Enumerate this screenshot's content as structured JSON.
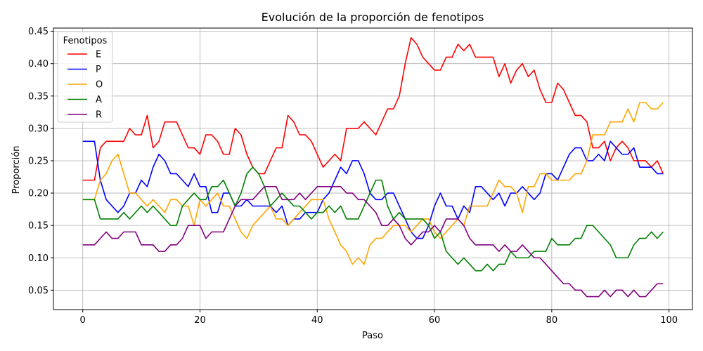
{
  "chart_data": {
    "type": "line",
    "title": "Evolución de la proporción de fenotipos",
    "xlabel": "Paso",
    "ylabel": "Proporción",
    "xlim": [
      -5,
      104
    ],
    "ylim": [
      0.02,
      0.455
    ],
    "xticks": [
      0,
      20,
      40,
      60,
      80,
      100
    ],
    "xtick_labels": [
      "0",
      "20",
      "40",
      "60",
      "80",
      "100"
    ],
    "yticks": [
      0.05,
      0.1,
      0.15,
      0.2,
      0.25,
      0.3,
      0.35,
      0.4,
      0.45
    ],
    "ytick_labels": [
      "0.05",
      "0.10",
      "0.15",
      "0.20",
      "0.25",
      "0.30",
      "0.35",
      "0.40",
      "0.45"
    ],
    "grid": true,
    "legend": {
      "title": "Fenotipos",
      "placement": "top-left"
    },
    "x": [
      0,
      1,
      2,
      3,
      4,
      5,
      6,
      7,
      8,
      9,
      10,
      11,
      12,
      13,
      14,
      15,
      16,
      17,
      18,
      19,
      20,
      21,
      22,
      23,
      24,
      25,
      26,
      27,
      28,
      29,
      30,
      31,
      32,
      33,
      34,
      35,
      36,
      37,
      38,
      39,
      40,
      41,
      42,
      43,
      44,
      45,
      46,
      47,
      48,
      49,
      50,
      51,
      52,
      53,
      54,
      55,
      56,
      57,
      58,
      59,
      60,
      61,
      62,
      63,
      64,
      65,
      66,
      67,
      68,
      69,
      70,
      71,
      72,
      73,
      74,
      75,
      76,
      77,
      78,
      79,
      80,
      81,
      82,
      83,
      84,
      85,
      86,
      87,
      88,
      89,
      90,
      91,
      92,
      93,
      94,
      95,
      96,
      97,
      98,
      99
    ],
    "series": [
      {
        "name": "E",
        "color": "#ff0000",
        "values": [
          0.22,
          0.22,
          0.22,
          0.27,
          0.28,
          0.28,
          0.28,
          0.28,
          0.3,
          0.29,
          0.29,
          0.32,
          0.27,
          0.28,
          0.31,
          0.31,
          0.31,
          0.29,
          0.27,
          0.27,
          0.26,
          0.29,
          0.29,
          0.28,
          0.26,
          0.26,
          0.3,
          0.29,
          0.26,
          0.24,
          0.23,
          0.23,
          0.25,
          0.27,
          0.27,
          0.32,
          0.31,
          0.29,
          0.29,
          0.28,
          0.26,
          0.24,
          0.25,
          0.26,
          0.25,
          0.3,
          0.3,
          0.3,
          0.31,
          0.3,
          0.29,
          0.31,
          0.33,
          0.33,
          0.35,
          0.4,
          0.44,
          0.43,
          0.41,
          0.4,
          0.39,
          0.39,
          0.41,
          0.41,
          0.43,
          0.42,
          0.43,
          0.41,
          0.41,
          0.41,
          0.41,
          0.38,
          0.4,
          0.37,
          0.39,
          0.4,
          0.38,
          0.39,
          0.36,
          0.34,
          0.34,
          0.37,
          0.36,
          0.34,
          0.32,
          0.32,
          0.31,
          0.27,
          0.27,
          0.28,
          0.25,
          0.27,
          0.28,
          0.27,
          0.25,
          0.25,
          0.25,
          0.24,
          0.25,
          0.23
        ]
      },
      {
        "name": "P",
        "color": "#0000ff",
        "values": [
          0.28,
          0.28,
          0.28,
          0.22,
          0.19,
          0.18,
          0.17,
          0.18,
          0.2,
          0.2,
          0.22,
          0.21,
          0.24,
          0.26,
          0.25,
          0.23,
          0.23,
          0.22,
          0.21,
          0.23,
          0.21,
          0.21,
          0.17,
          0.17,
          0.2,
          0.2,
          0.18,
          0.18,
          0.19,
          0.18,
          0.18,
          0.18,
          0.18,
          0.17,
          0.18,
          0.15,
          0.16,
          0.16,
          0.17,
          0.17,
          0.17,
          0.19,
          0.2,
          0.22,
          0.24,
          0.23,
          0.25,
          0.25,
          0.23,
          0.2,
          0.19,
          0.19,
          0.2,
          0.2,
          0.18,
          0.16,
          0.14,
          0.13,
          0.13,
          0.15,
          0.18,
          0.2,
          0.18,
          0.18,
          0.16,
          0.18,
          0.17,
          0.21,
          0.21,
          0.2,
          0.19,
          0.2,
          0.18,
          0.2,
          0.2,
          0.21,
          0.2,
          0.19,
          0.2,
          0.23,
          0.23,
          0.22,
          0.24,
          0.26,
          0.27,
          0.27,
          0.25,
          0.25,
          0.26,
          0.25,
          0.28,
          0.27,
          0.26,
          0.26,
          0.27,
          0.24,
          0.24,
          0.24,
          0.23,
          0.23
        ]
      },
      {
        "name": "O",
        "color": "#ffa500",
        "values": [
          0.19,
          0.19,
          0.19,
          0.22,
          0.23,
          0.25,
          0.26,
          0.23,
          0.2,
          0.2,
          0.19,
          0.18,
          0.19,
          0.18,
          0.17,
          0.19,
          0.19,
          0.18,
          0.18,
          0.15,
          0.19,
          0.18,
          0.19,
          0.2,
          0.18,
          0.18,
          0.16,
          0.14,
          0.13,
          0.15,
          0.16,
          0.17,
          0.18,
          0.16,
          0.16,
          0.15,
          0.16,
          0.17,
          0.18,
          0.19,
          0.19,
          0.19,
          0.16,
          0.14,
          0.12,
          0.11,
          0.09,
          0.1,
          0.09,
          0.12,
          0.13,
          0.13,
          0.14,
          0.15,
          0.15,
          0.15,
          0.14,
          0.15,
          0.16,
          0.16,
          0.14,
          0.13,
          0.14,
          0.15,
          0.16,
          0.15,
          0.18,
          0.18,
          0.18,
          0.18,
          0.2,
          0.22,
          0.21,
          0.21,
          0.2,
          0.17,
          0.21,
          0.21,
          0.23,
          0.23,
          0.22,
          0.22,
          0.22,
          0.22,
          0.23,
          0.23,
          0.25,
          0.29,
          0.29,
          0.29,
          0.31,
          0.31,
          0.31,
          0.33,
          0.31,
          0.34,
          0.34,
          0.33,
          0.33,
          0.34
        ]
      },
      {
        "name": "A",
        "color": "#008000",
        "values": [
          0.19,
          0.19,
          0.19,
          0.16,
          0.16,
          0.16,
          0.16,
          0.17,
          0.16,
          0.17,
          0.18,
          0.17,
          0.18,
          0.17,
          0.16,
          0.15,
          0.15,
          0.18,
          0.19,
          0.2,
          0.19,
          0.19,
          0.21,
          0.21,
          0.22,
          0.2,
          0.18,
          0.2,
          0.23,
          0.24,
          0.23,
          0.21,
          0.18,
          0.19,
          0.2,
          0.19,
          0.18,
          0.18,
          0.17,
          0.16,
          0.17,
          0.17,
          0.18,
          0.17,
          0.18,
          0.16,
          0.16,
          0.16,
          0.18,
          0.2,
          0.22,
          0.22,
          0.18,
          0.16,
          0.17,
          0.16,
          0.16,
          0.16,
          0.16,
          0.15,
          0.13,
          0.14,
          0.11,
          0.1,
          0.09,
          0.1,
          0.09,
          0.08,
          0.08,
          0.09,
          0.08,
          0.09,
          0.09,
          0.11,
          0.1,
          0.1,
          0.1,
          0.11,
          0.11,
          0.11,
          0.13,
          0.12,
          0.12,
          0.12,
          0.13,
          0.13,
          0.15,
          0.15,
          0.14,
          0.13,
          0.12,
          0.1,
          0.1,
          0.1,
          0.12,
          0.13,
          0.13,
          0.14,
          0.13,
          0.14
        ]
      },
      {
        "name": "R",
        "color": "#800080",
        "values": [
          0.12,
          0.12,
          0.12,
          0.13,
          0.14,
          0.13,
          0.13,
          0.14,
          0.14,
          0.14,
          0.12,
          0.12,
          0.12,
          0.11,
          0.11,
          0.12,
          0.12,
          0.13,
          0.15,
          0.15,
          0.15,
          0.13,
          0.14,
          0.14,
          0.14,
          0.16,
          0.18,
          0.19,
          0.19,
          0.19,
          0.2,
          0.21,
          0.21,
          0.21,
          0.19,
          0.19,
          0.19,
          0.2,
          0.19,
          0.2,
          0.21,
          0.21,
          0.21,
          0.21,
          0.21,
          0.2,
          0.2,
          0.19,
          0.19,
          0.18,
          0.17,
          0.15,
          0.15,
          0.16,
          0.15,
          0.13,
          0.12,
          0.13,
          0.14,
          0.14,
          0.15,
          0.14,
          0.16,
          0.16,
          0.16,
          0.15,
          0.13,
          0.12,
          0.12,
          0.12,
          0.12,
          0.11,
          0.12,
          0.11,
          0.11,
          0.12,
          0.11,
          0.1,
          0.1,
          0.09,
          0.08,
          0.07,
          0.06,
          0.06,
          0.05,
          0.05,
          0.04,
          0.04,
          0.04,
          0.05,
          0.04,
          0.05,
          0.05,
          0.04,
          0.05,
          0.04,
          0.04,
          0.05,
          0.06,
          0.06
        ]
      }
    ]
  }
}
